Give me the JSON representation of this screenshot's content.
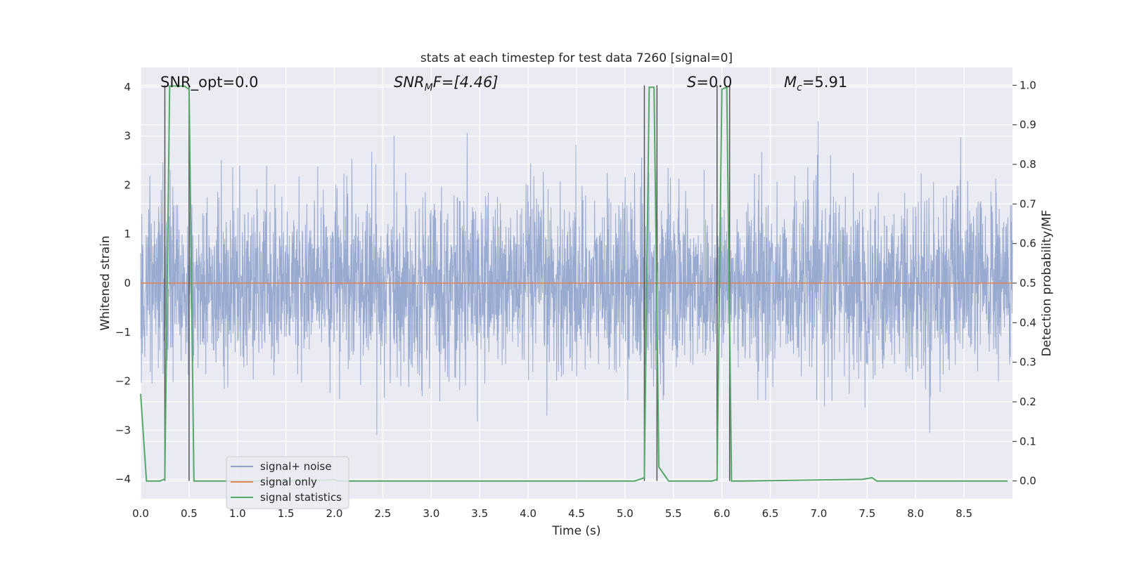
{
  "chart_data": {
    "type": "line",
    "title": "stats at each timestep for test data 7260 [signal=0]",
    "xlabel": "Time (s)",
    "ylabel": "Whitened strain",
    "y2label": "Detection probability/MF",
    "xlim": [
      0,
      9.0
    ],
    "ylim": [
      -4.4,
      4.4
    ],
    "y2lim": [
      -0.045,
      1.045
    ],
    "x_ticks": [
      0.0,
      0.5,
      1.0,
      1.5,
      2.0,
      2.5,
      3.0,
      3.5,
      4.0,
      4.5,
      5.0,
      5.5,
      6.0,
      6.5,
      7.0,
      7.5,
      8.0,
      8.5
    ],
    "x_tick_labels": [
      "0.0",
      "0.5",
      "1.0",
      "1.5",
      "2.0",
      "2.5",
      "3.0",
      "3.5",
      "4.0",
      "4.5",
      "5.0",
      "5.5",
      "6.0",
      "6.5",
      "7.0",
      "7.5",
      "8.0",
      "8.5"
    ],
    "y_ticks": [
      -4,
      -3,
      -2,
      -1,
      0,
      1,
      2,
      3,
      4
    ],
    "y_tick_labels": [
      "−4",
      "−3",
      "−2",
      "−1",
      "0",
      "1",
      "2",
      "3",
      "4"
    ],
    "y2_ticks": [
      0.0,
      0.1,
      0.2,
      0.3,
      0.4,
      0.5,
      0.6,
      0.7,
      0.8,
      0.9,
      1.0
    ],
    "y2_tick_labels": [
      "0.0",
      "0.1",
      "0.2",
      "0.3",
      "0.4",
      "0.5",
      "0.6",
      "0.7",
      "0.8",
      "0.9",
      "1.0"
    ],
    "grid": true,
    "legend_position": "lower-left",
    "annotations": {
      "snr_opt": "SNR_opt=0.0",
      "snr_mf_name": "SNR",
      "snr_mf_sub": "M",
      "snr_mf_rest": "F=[4.46]",
      "s_name": "S",
      "s_rest": "=0.0",
      "mc_name": "M",
      "mc_sub": "c",
      "mc_rest": "=5.91"
    },
    "series": [
      {
        "name": "signal+ noise",
        "color": "#8fa3cc",
        "axis": "left",
        "kind": "noise",
        "x_range": [
          0,
          9.0
        ],
        "typical_amplitude": [
          -1.5,
          1.7
        ],
        "peak_range": [
          -3.1,
          3.3
        ]
      },
      {
        "name": "signal only",
        "color": "#dd8452",
        "axis": "left",
        "x": [
          0,
          9.0
        ],
        "y": [
          0,
          0
        ]
      },
      {
        "name": "signal statistics",
        "color": "#55a868",
        "axis": "right",
        "x": [
          0.0,
          0.06,
          0.2,
          0.25,
          0.3,
          0.45,
          0.5,
          0.55,
          1.5,
          2.0,
          2.05,
          2.3,
          5.1,
          5.2,
          5.25,
          5.3,
          5.35,
          5.45,
          5.55,
          5.9,
          5.95,
          6.0,
          6.05,
          6.1,
          6.15,
          6.2,
          7.45,
          7.55,
          7.6,
          7.7,
          8.95
        ],
        "y": [
          0.22,
          0.0,
          0.0,
          0.005,
          0.998,
          0.998,
          0.99,
          0.0,
          0.0,
          0.003,
          0.0,
          0.0,
          0.0,
          0.008,
          0.995,
          0.995,
          0.035,
          0.0,
          0.0,
          0.0,
          0.004,
          0.99,
          0.995,
          0.0,
          0.0,
          0.0,
          0.004,
          0.008,
          0.0,
          0.0,
          0.0
        ]
      }
    ],
    "detection_markers": {
      "color": "#555555",
      "x": [
        0.25,
        0.5,
        5.2,
        5.33,
        5.95,
        6.08
      ],
      "y2_range": [
        0.0,
        1.0
      ]
    }
  }
}
